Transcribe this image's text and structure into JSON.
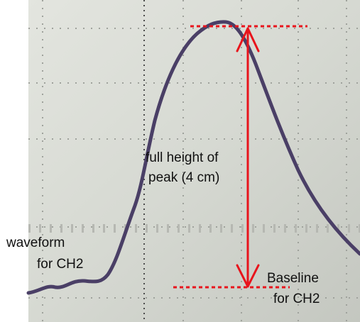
{
  "figure": {
    "screen_color": "#d3d6cf",
    "grid_dot_color": "#9fa29c",
    "waveform_color": "#4a3f66",
    "annotation_color": "#e8141c",
    "text_color": "#111111"
  },
  "labels": {
    "peak_line1": "full height of",
    "peak_line2": "peak (4 cm)",
    "waveform_line1": "waveform",
    "waveform_line2": "for CH2",
    "baseline_line1": "Baseline",
    "baseline_line2": "for CH2"
  }
}
